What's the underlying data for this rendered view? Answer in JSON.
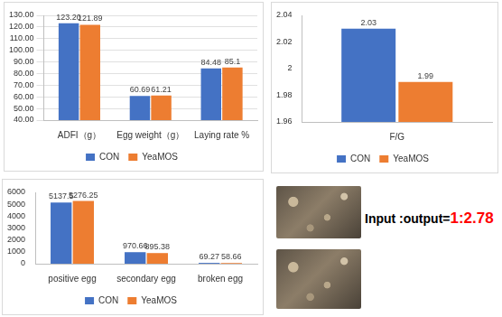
{
  "chart_data": [
    {
      "type": "bar",
      "categories": [
        "ADFI（g）",
        "Egg weight（g）",
        "Laying rate %"
      ],
      "series": [
        {
          "name": "CON",
          "color": "#4472c4",
          "values": [
            123.2,
            60.69,
            84.48
          ],
          "value_labels": [
            "123.20",
            "60.69",
            "84.48"
          ]
        },
        {
          "name": "YeaMOS",
          "color": "#ed7d31",
          "values": [
            121.89,
            61.21,
            85.1
          ]
        }
      ],
      "ylim": [
        40,
        130
      ],
      "yticks": [
        {
          "value": 40,
          "label": "40.00"
        },
        {
          "value": 50,
          "label": "50.00"
        },
        {
          "value": 60,
          "label": "60.00"
        },
        {
          "value": 70,
          "label": "70.00"
        },
        {
          "value": 80,
          "label": "80.00"
        },
        {
          "value": 90,
          "label": "90.00"
        },
        {
          "value": 100,
          "label": "100.00"
        },
        {
          "value": 110,
          "label": "110.00"
        },
        {
          "value": 120,
          "label": "120.00"
        },
        {
          "value": 130,
          "label": "130.00"
        }
      ],
      "grid": true,
      "legend": "bottom",
      "data_labels": true
    },
    {
      "type": "bar",
      "categories": [
        "F/G"
      ],
      "series": [
        {
          "name": "CON",
          "color": "#4472c4",
          "values": [
            2.03
          ]
        },
        {
          "name": "YeaMOS",
          "color": "#ed7d31",
          "values": [
            1.99
          ]
        }
      ],
      "ylim": [
        1.96,
        2.04
      ],
      "yticks": [
        1.96,
        1.98,
        2,
        2.02,
        2.04
      ],
      "grid": false,
      "legend": "bottom",
      "data_labels": true
    },
    {
      "type": "bar",
      "categories": [
        "positive egg",
        "secondary egg",
        "broken egg"
      ],
      "series": [
        {
          "name": "CON",
          "color": "#4472c4",
          "values": [
            5137.5,
            970.66,
            69.27
          ]
        },
        {
          "name": "YeaMOS",
          "color": "#ed7d31",
          "values": [
            5276.25,
            895.38,
            58.66
          ]
        }
      ],
      "ylim": [
        0,
        6000
      ],
      "yticks": [
        0,
        1000,
        2000,
        3000,
        4000,
        5000,
        6000
      ],
      "grid": false,
      "legend": "bottom",
      "data_labels": true
    }
  ],
  "annotation": {
    "text": "Input :output=",
    "highlight": "1:2.78",
    "color": "#ff0000"
  }
}
